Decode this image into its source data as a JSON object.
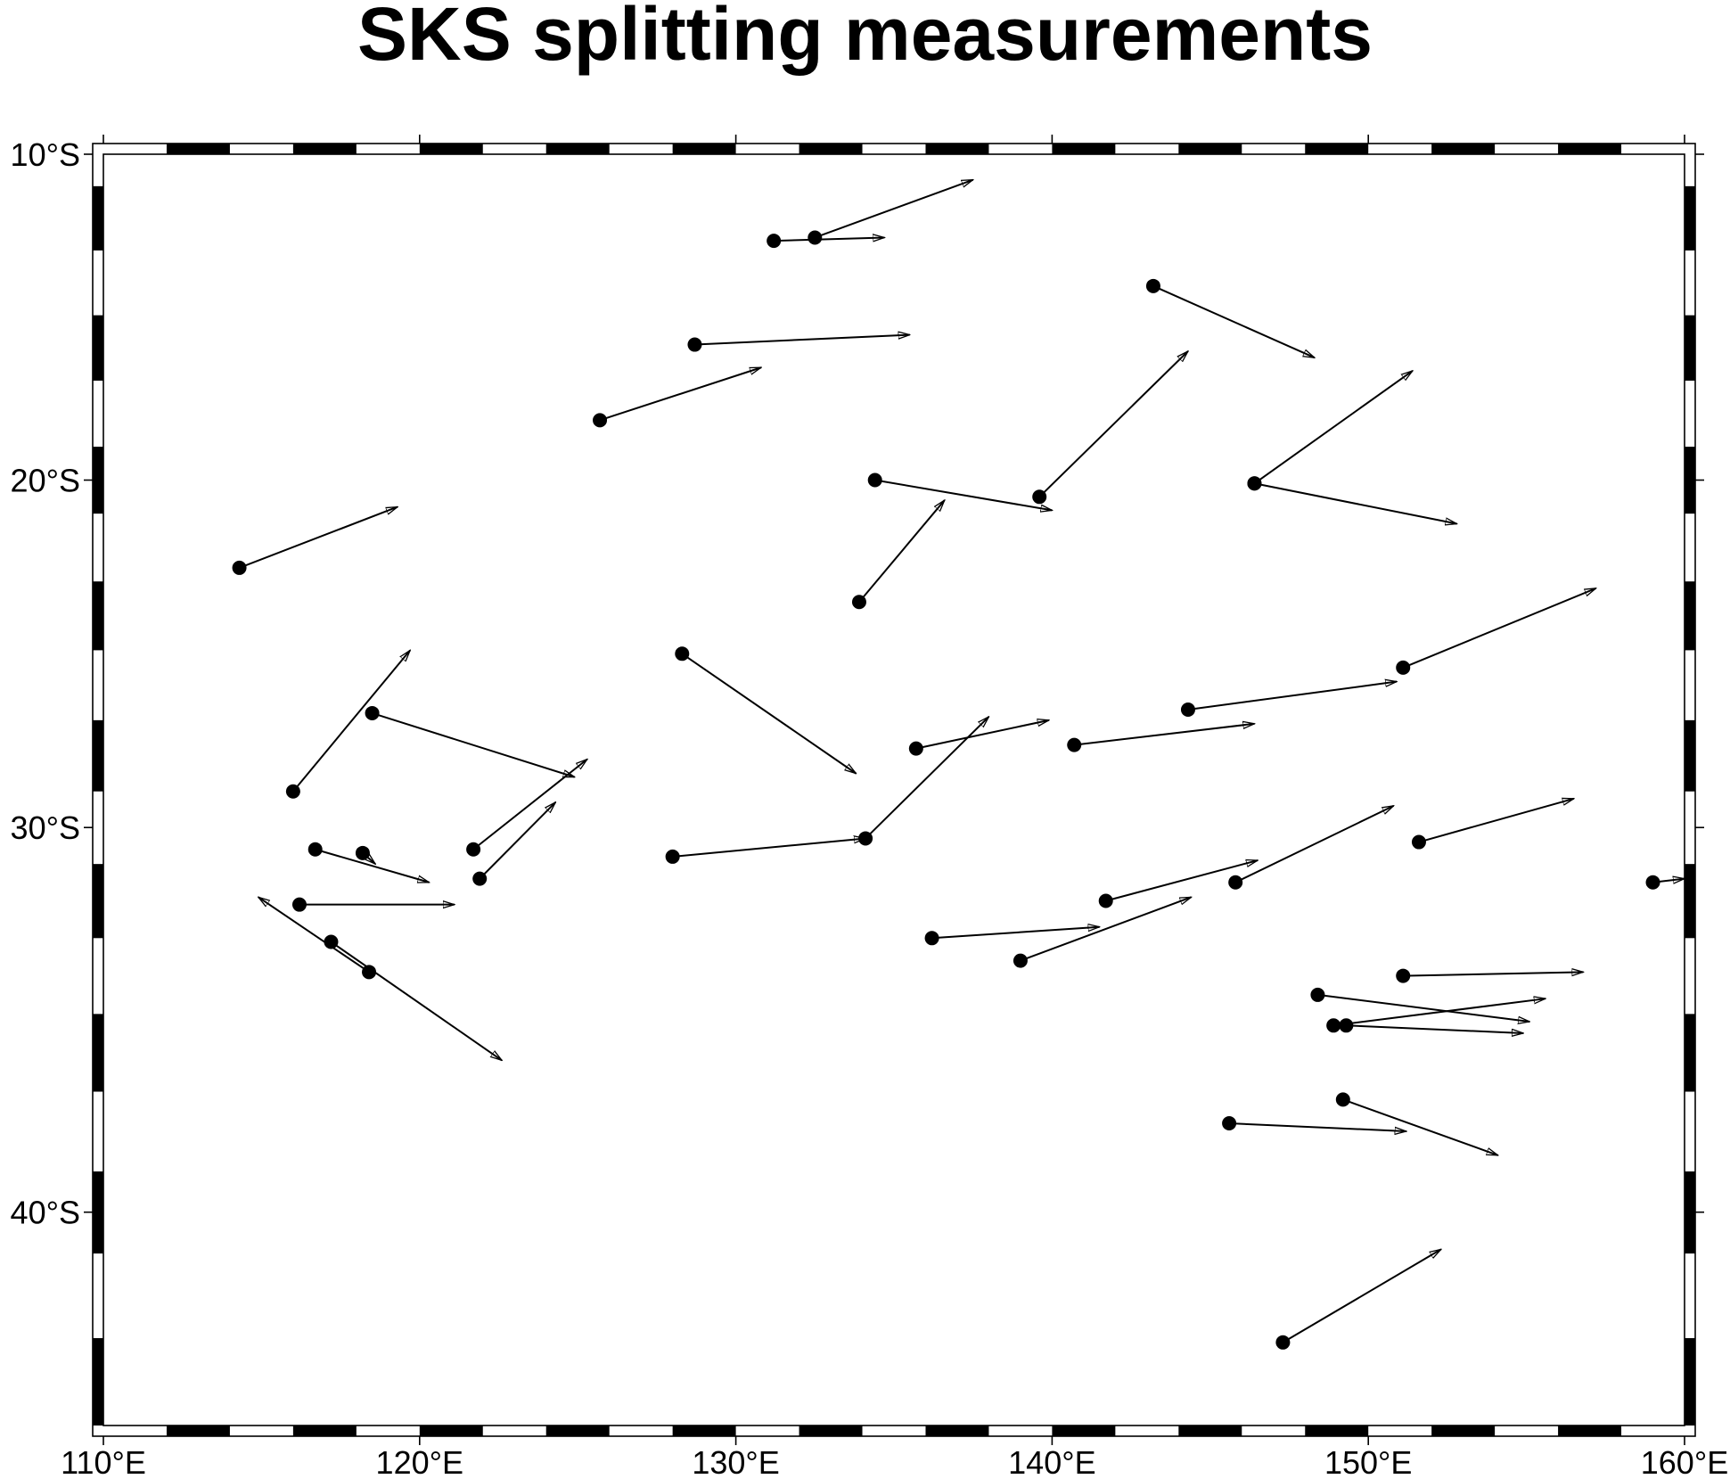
{
  "title": "SKS splitting measurements",
  "map": {
    "projection": "mercator",
    "lon_range": [
      110,
      160
    ],
    "lat_range": [
      -45,
      -10
    ],
    "frame_style": "fancy checkered border",
    "x_ticks": [
      {
        "value": 110,
        "label": "110°E"
      },
      {
        "value": 120,
        "label": "120°E"
      },
      {
        "value": 130,
        "label": "130°E"
      },
      {
        "value": 140,
        "label": "140°E"
      },
      {
        "value": 150,
        "label": "150°E"
      },
      {
        "value": 160,
        "label": "160°E"
      }
    ],
    "y_ticks": [
      {
        "value": -10,
        "label": "10°S"
      },
      {
        "value": -20,
        "label": "20°S"
      },
      {
        "value": -30,
        "label": "30°S"
      },
      {
        "value": -40,
        "label": "40°S"
      }
    ],
    "frame_minor_step_deg": 2,
    "colors": {
      "symbol": "#000000",
      "vector": "#000000",
      "frame": "#000000",
      "background": "#ffffff"
    }
  },
  "chart_data": {
    "type": "scatter",
    "title": "SKS splitting measurements",
    "x_label": "",
    "y_label": "",
    "xlim": [
      110,
      160
    ],
    "ylim": [
      -45,
      -10
    ],
    "units": "degrees longitude / latitude",
    "points": [
      {
        "lon": 114.3,
        "lat": -22.6,
        "tip_lon": 119.3,
        "tip_lat": -20.8
      },
      {
        "lon": 116.0,
        "lat": -29.0,
        "tip_lon": 119.7,
        "tip_lat": -25.0
      },
      {
        "lon": 118.5,
        "lat": -26.8,
        "tip_lon": 124.9,
        "tip_lat": -28.6
      },
      {
        "lon": 116.7,
        "lat": -30.6,
        "tip_lon": 120.3,
        "tip_lat": -31.5
      },
      {
        "lon": 118.2,
        "lat": -30.7,
        "tip_lon": 118.6,
        "tip_lat": -31.0
      },
      {
        "lon": 116.2,
        "lat": -32.1,
        "tip_lon": 121.1,
        "tip_lat": -32.1
      },
      {
        "lon": 117.2,
        "lat": -33.1,
        "tip_lon": 122.6,
        "tip_lat": -36.2
      },
      {
        "lon": 118.4,
        "lat": -33.9,
        "tip_lon": 114.9,
        "tip_lat": -31.9
      },
      {
        "lon": 121.7,
        "lat": -30.6,
        "tip_lon": 125.3,
        "tip_lat": -28.1
      },
      {
        "lon": 121.9,
        "lat": -31.4,
        "tip_lon": 124.3,
        "tip_lat": -29.3
      },
      {
        "lon": 125.7,
        "lat": -18.2,
        "tip_lon": 130.8,
        "tip_lat": -16.6
      },
      {
        "lon": 128.7,
        "lat": -15.9,
        "tip_lon": 135.5,
        "tip_lat": -15.6
      },
      {
        "lon": 131.2,
        "lat": -12.7,
        "tip_lon": 134.7,
        "tip_lat": -12.6
      },
      {
        "lon": 132.5,
        "lat": -12.6,
        "tip_lon": 137.5,
        "tip_lat": -10.8
      },
      {
        "lon": 128.3,
        "lat": -25.1,
        "tip_lon": 133.8,
        "tip_lat": -28.5
      },
      {
        "lon": 128.0,
        "lat": -30.8,
        "tip_lon": 134.1,
        "tip_lat": -30.3
      },
      {
        "lon": 134.1,
        "lat": -30.3,
        "tip_lon": 138.0,
        "tip_lat": -26.9
      },
      {
        "lon": 133.9,
        "lat": -23.6,
        "tip_lon": 136.6,
        "tip_lat": -20.6
      },
      {
        "lon": 134.4,
        "lat": -20.0,
        "tip_lon": 140.0,
        "tip_lat": -20.9
      },
      {
        "lon": 139.6,
        "lat": -20.5,
        "tip_lon": 144.3,
        "tip_lat": -16.1
      },
      {
        "lon": 143.2,
        "lat": -14.1,
        "tip_lon": 148.3,
        "tip_lat": -16.3
      },
      {
        "lon": 135.7,
        "lat": -27.8,
        "tip_lon": 139.9,
        "tip_lat": -27.0
      },
      {
        "lon": 140.7,
        "lat": -27.7,
        "tip_lon": 146.4,
        "tip_lat": -27.1
      },
      {
        "lon": 136.2,
        "lat": -33.0,
        "tip_lon": 141.5,
        "tip_lat": -32.7
      },
      {
        "lon": 139.0,
        "lat": -33.6,
        "tip_lon": 144.4,
        "tip_lat": -31.9
      },
      {
        "lon": 141.7,
        "lat": -32.0,
        "tip_lon": 146.5,
        "tip_lat": -30.9
      },
      {
        "lon": 144.3,
        "lat": -26.7,
        "tip_lon": 150.9,
        "tip_lat": -25.9
      },
      {
        "lon": 146.4,
        "lat": -20.1,
        "tip_lon": 151.4,
        "tip_lat": -16.7
      },
      {
        "lon": 146.4,
        "lat": -20.1,
        "tip_lon": 152.8,
        "tip_lat": -21.3
      },
      {
        "lon": 145.8,
        "lat": -31.5,
        "tip_lon": 150.8,
        "tip_lat": -29.4
      },
      {
        "lon": 151.1,
        "lat": -25.5,
        "tip_lon": 157.2,
        "tip_lat": -23.2
      },
      {
        "lon": 151.6,
        "lat": -30.4,
        "tip_lon": 156.5,
        "tip_lat": -29.2
      },
      {
        "lon": 148.4,
        "lat": -34.5,
        "tip_lon": 155.1,
        "tip_lat": -35.2
      },
      {
        "lon": 151.1,
        "lat": -34.0,
        "tip_lon": 156.8,
        "tip_lat": -33.9
      },
      {
        "lon": 148.9,
        "lat": -35.3,
        "tip_lon": 155.6,
        "tip_lat": -34.6
      },
      {
        "lon": 149.3,
        "lat": -35.3,
        "tip_lon": 154.9,
        "tip_lat": -35.5
      },
      {
        "lon": 149.2,
        "lat": -37.2,
        "tip_lon": 154.1,
        "tip_lat": -38.6
      },
      {
        "lon": 145.6,
        "lat": -37.8,
        "tip_lon": 151.2,
        "tip_lat": -38.0
      },
      {
        "lon": 147.3,
        "lat": -43.1,
        "tip_lon": 152.3,
        "tip_lat": -40.9
      },
      {
        "lon": 159.0,
        "lat": -31.5,
        "tip_lon": 160.0,
        "tip_lat": -31.4
      }
    ]
  }
}
